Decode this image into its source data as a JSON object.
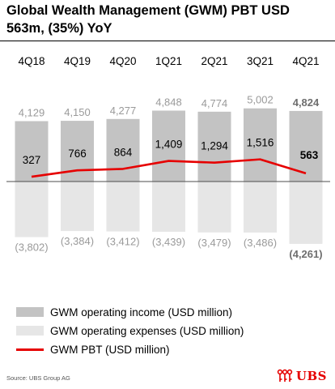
{
  "title": "Global Wealth Management (GWM) PBT USD 563m, (35%) YoY",
  "source": "Source: UBS Group AG",
  "logo_text": "UBS",
  "colors": {
    "income": "#c3c3c3",
    "expenses": "#e6e6e6",
    "pbt_line": "#e60000",
    "value_label": "#9a9a9a",
    "highlight_label": "#6e6e6e"
  },
  "chart_data": {
    "type": "bar",
    "categories": [
      "4Q18",
      "4Q19",
      "4Q20",
      "1Q21",
      "2Q21",
      "3Q21",
      "4Q21"
    ],
    "series": [
      {
        "name": "GWM operating income (USD million)",
        "type": "bar",
        "values": [
          4129,
          4150,
          4277,
          4848,
          4774,
          5002,
          4824
        ],
        "labels": [
          "4,129",
          "4,150",
          "4,277",
          "4,848",
          "4,774",
          "5,002",
          "4,824"
        ]
      },
      {
        "name": "GWM operating expenses (USD million)",
        "type": "bar",
        "values": [
          -3802,
          -3384,
          -3412,
          -3439,
          -3479,
          -3486,
          -4261
        ],
        "labels": [
          "(3,802)",
          "(3,384)",
          "(3,412)",
          "(3,439)",
          "(3,479)",
          "(3,486)",
          "(4,261)"
        ]
      },
      {
        "name": "GWM PBT (USD million)",
        "type": "line",
        "values": [
          327,
          766,
          864,
          1409,
          1294,
          1516,
          563
        ],
        "labels": [
          "327",
          "766",
          "864",
          "1,409",
          "1,294",
          "1,516",
          "563"
        ]
      }
    ],
    "highlight_category": "4Q21",
    "legend_position": "bottom-left",
    "grid": false
  }
}
